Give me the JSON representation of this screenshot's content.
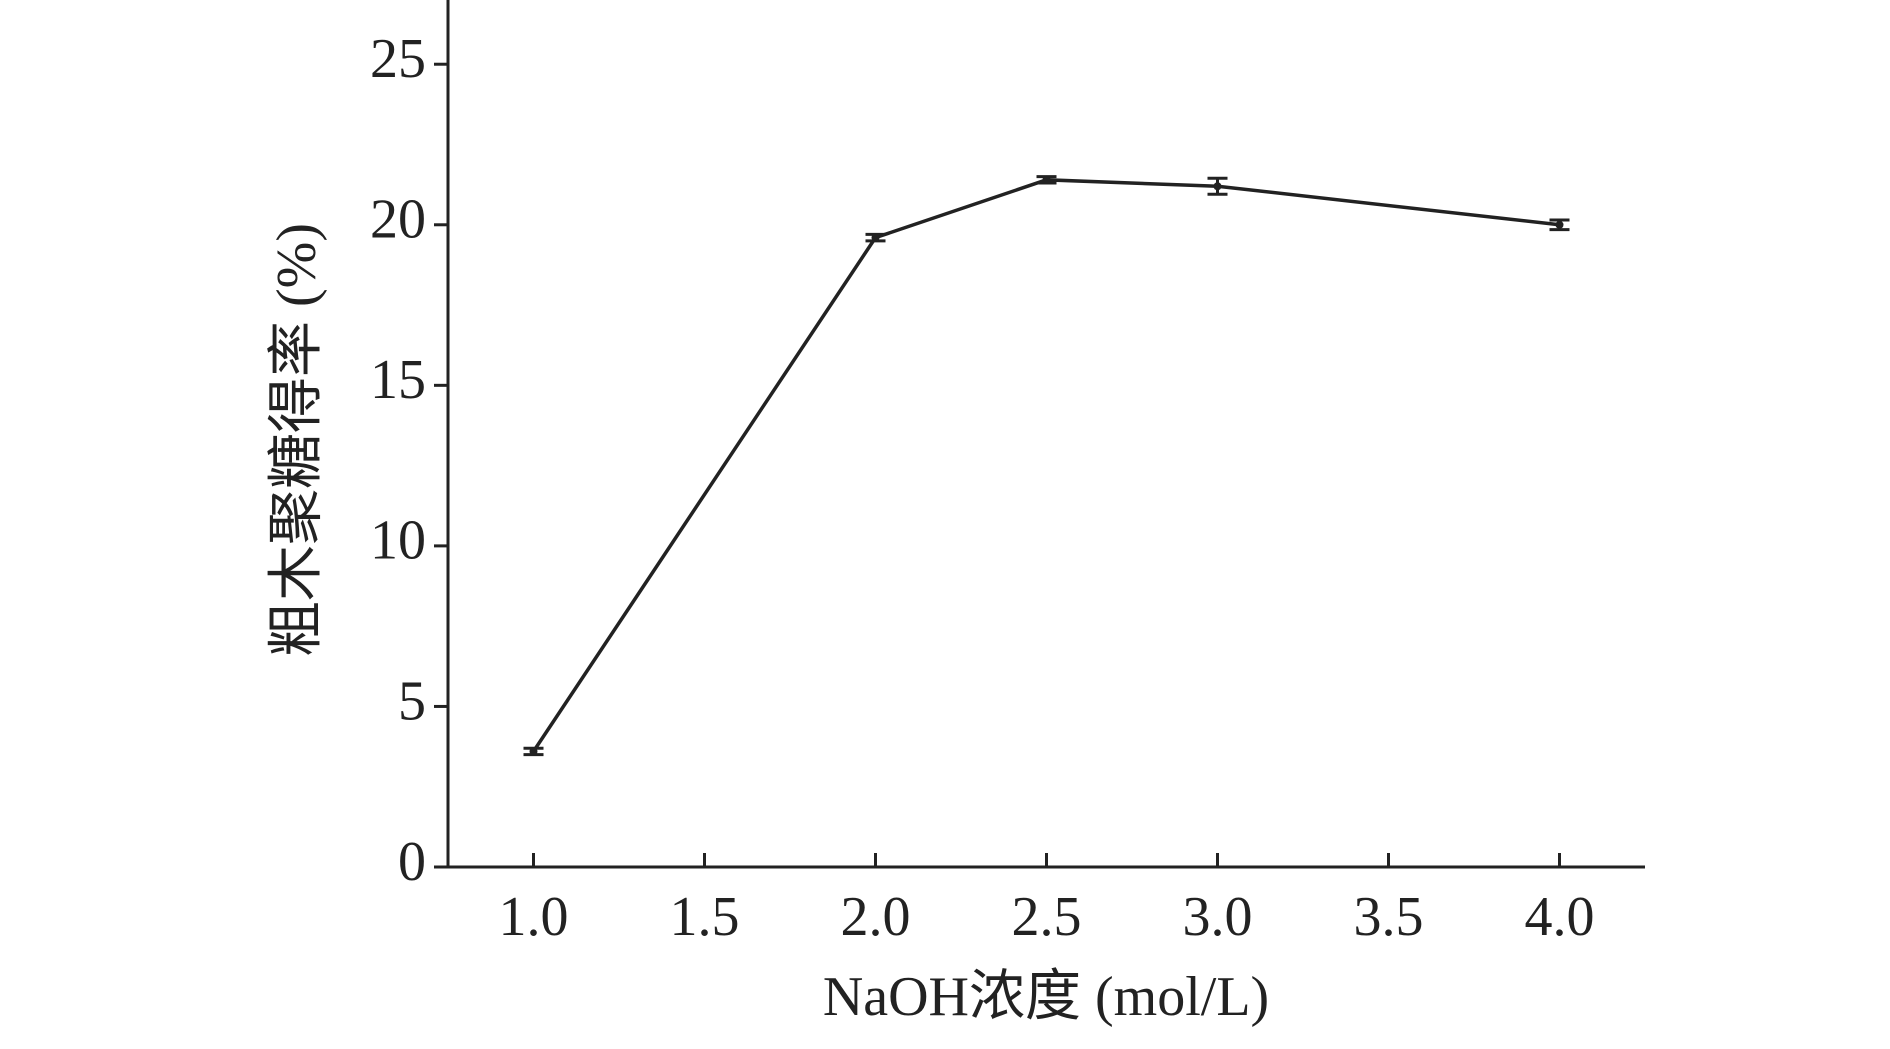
{
  "chart_data": {
    "type": "line",
    "x_label": "NaOH浓度 (mol/L)",
    "y_label": "粗木聚糖得率 (%)",
    "x": [
      1.0,
      2.0,
      2.5,
      3.0,
      4.0
    ],
    "values": [
      3.6,
      19.6,
      21.4,
      21.2,
      20.0
    ],
    "errors": [
      0.1,
      0.1,
      0.1,
      0.25,
      0.15
    ],
    "color": "#222222",
    "xlim": [
      0.75,
      4.25
    ],
    "xticks": [
      {
        "value": 1,
        "label": "1.0"
      },
      {
        "value": 1.5,
        "label": "1.5"
      },
      {
        "value": 2,
        "label": "2.0"
      },
      {
        "value": 2.5,
        "label": "2.5"
      },
      {
        "value": 3,
        "label": "3.0"
      },
      {
        "value": 3.5,
        "label": "3.5"
      },
      {
        "value": 4,
        "label": "4.0"
      }
    ],
    "ylim": [
      0,
      27
    ],
    "yticks": [
      0,
      5,
      10,
      15,
      20,
      25
    ]
  }
}
